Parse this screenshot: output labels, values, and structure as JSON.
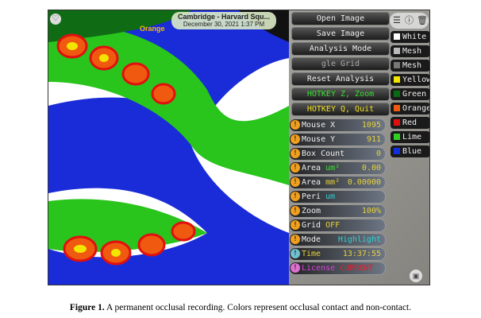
{
  "photo": {
    "location": "Cambridge - Harvard Squ...",
    "datetime": "December 30, 2021 1:37 PM",
    "overlay_label": "Orange",
    "buttons": [
      "Open Image",
      "Save Image",
      "Analysis Mode",
      "gle Grid",
      "Reset Analysis",
      "HOTKEY Z, Zoom",
      "HOTKEY Q, Quit"
    ],
    "fields": [
      {
        "label": "Mouse X",
        "unit": "",
        "value": "1095"
      },
      {
        "label": "Mouse Y",
        "unit": "",
        "value": "911"
      },
      {
        "label": "Box Count",
        "unit": "",
        "value": "0"
      },
      {
        "label": "Area",
        "unit": "um²",
        "value": "0.00"
      },
      {
        "label": "Area",
        "unit": "mm²",
        "value": "0.00000"
      },
      {
        "label": "Peri",
        "unit": "um",
        "value": ""
      },
      {
        "label": "Zoom",
        "unit": "",
        "value": "100%"
      },
      {
        "label": "Grid",
        "unit": "",
        "value": "OFF"
      },
      {
        "label": "Mode",
        "unit": "",
        "value": "Highlight"
      },
      {
        "label": "Time",
        "unit": "",
        "value": "13:37:55"
      },
      {
        "label": "License",
        "unit": "",
        "value": "CURRENT"
      }
    ],
    "colors": [
      {
        "label": "White",
        "hex": "#ffffff"
      },
      {
        "label": "Mesh",
        "hex": "#bbbbbb"
      },
      {
        "label": "Mesh",
        "hex": "#777777"
      },
      {
        "label": "Yellow",
        "hex": "#f2e600"
      },
      {
        "label": "Green",
        "hex": "#0b6b12"
      },
      {
        "label": "Orange",
        "hex": "#f05a10"
      },
      {
        "label": "Red",
        "hex": "#e01010"
      },
      {
        "label": "Lime",
        "hex": "#30d020"
      },
      {
        "label": "Blue",
        "hex": "#1030e0"
      }
    ],
    "toolbar_icons": [
      "sliders-icon",
      "info-icon",
      "trash-icon"
    ]
  },
  "caption": {
    "label": "Figure 1.",
    "text": " A permanent occlusal recording. Colors represent occlusal contact and non-contact."
  }
}
